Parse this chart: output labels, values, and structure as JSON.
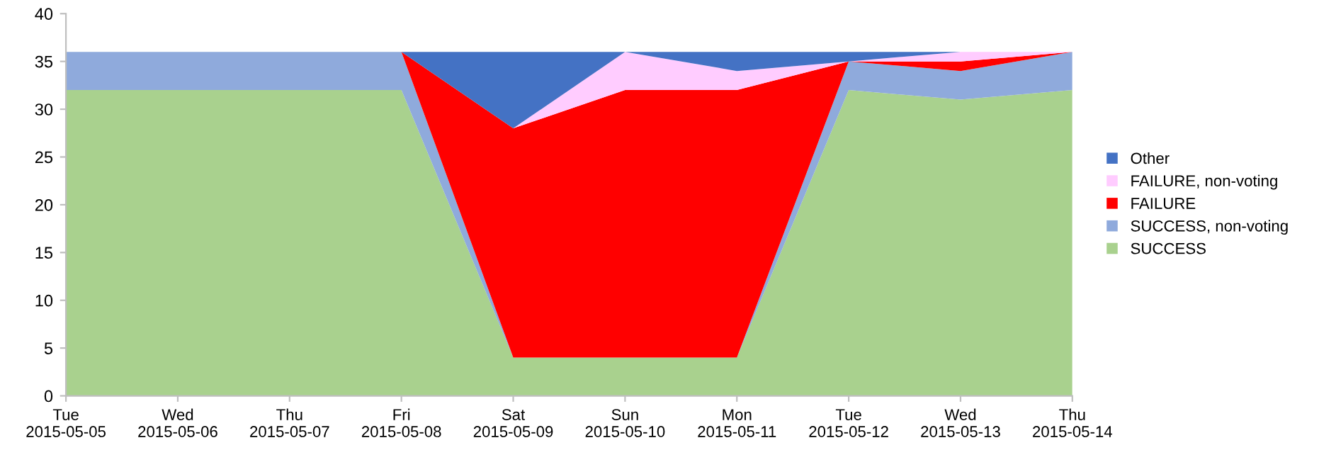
{
  "chart_data": {
    "type": "area",
    "stacked": true,
    "categories": [
      "Tue 2015-05-05",
      "Wed 2015-05-06",
      "Thu 2015-05-07",
      "Fri 2015-05-08",
      "Sat 2015-05-09",
      "Sun 2015-05-10",
      "Mon 2015-05-11",
      "Tue 2015-05-12",
      "Wed 2015-05-13",
      "Thu 2015-05-14"
    ],
    "series": [
      {
        "name": "SUCCESS",
        "color": "#a9d18e",
        "values": [
          32,
          32,
          32,
          32,
          4,
          4,
          4,
          32,
          31,
          32
        ]
      },
      {
        "name": "SUCCESS, non-voting",
        "color": "#8faadc",
        "values": [
          4,
          4,
          4,
          4,
          0,
          0,
          0,
          3,
          3,
          4
        ]
      },
      {
        "name": "FAILURE",
        "color": "#ff0000",
        "values": [
          null,
          null,
          null,
          0,
          24,
          28,
          28,
          0,
          1,
          0
        ]
      },
      {
        "name": "FAILURE, non-voting",
        "color": "#ffccff",
        "values": [
          null,
          null,
          null,
          null,
          0,
          4,
          2,
          0,
          1,
          0
        ]
      },
      {
        "name": "Other",
        "color": "#4472c4",
        "values": [
          null,
          null,
          null,
          0,
          8,
          0,
          2,
          1,
          0,
          0
        ]
      }
    ],
    "ylim": [
      0,
      40
    ],
    "yticks": [
      0,
      5,
      10,
      15,
      20,
      25,
      30,
      35,
      40
    ],
    "grid": false,
    "legend": "right"
  }
}
